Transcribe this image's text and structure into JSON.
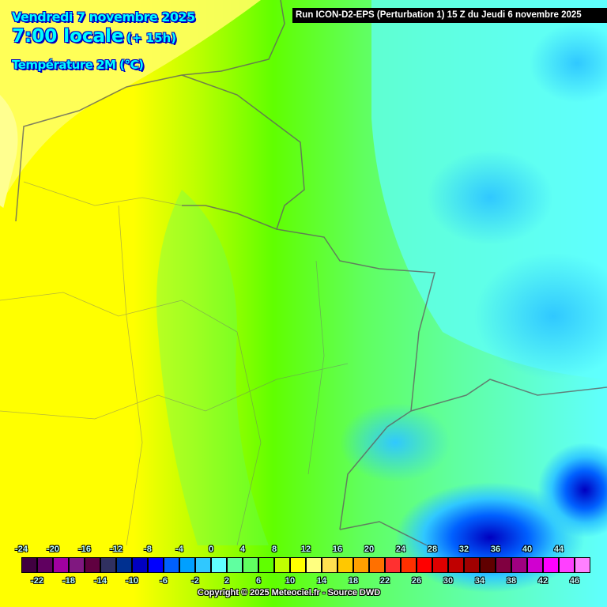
{
  "header": {
    "date": "Vendredi 7 novembre 2025",
    "time": "7:00 locale",
    "lead": "(+ 15h)",
    "parameter": "Température 2M (°C)",
    "run": "Run ICON-D2-EPS (Perturbation 1) 15 Z du Jeudi 6 novembre 2025"
  },
  "legend": {
    "top_labels": [
      "-24",
      "-20",
      "-16",
      "-12",
      "-8",
      "-4",
      "0",
      "4",
      "8",
      "12",
      "16",
      "20",
      "24",
      "28",
      "32",
      "36",
      "40",
      "44"
    ],
    "bottom_labels": [
      "-22",
      "-18",
      "-14",
      "-10",
      "-6",
      "-2",
      "2",
      "6",
      "10",
      "14",
      "18",
      "22",
      "26",
      "30",
      "34",
      "38",
      "42",
      "46"
    ],
    "colors": [
      "#400040",
      "#600060",
      "#a000a0",
      "#801880",
      "#600040",
      "#303060",
      "#003090",
      "#0000c0",
      "#0000ff",
      "#0060ff",
      "#00a0ff",
      "#30c8ff",
      "#60ffff",
      "#60ffa0",
      "#60ff60",
      "#60ff00",
      "#c0ff00",
      "#ffff00",
      "#ffff80",
      "#ffe050",
      "#ffc800",
      "#ffa000",
      "#ff7000",
      "#ff3030",
      "#ff3000",
      "#ff0000",
      "#e00000",
      "#c00000",
      "#a00000",
      "#600000",
      "#800040",
      "#a00080",
      "#d000d0",
      "#ff00ff",
      "#ff40ff",
      "#ff80ff"
    ]
  },
  "copyright": "Copyright © 2025 Meteociel.fr - Source DWD"
}
